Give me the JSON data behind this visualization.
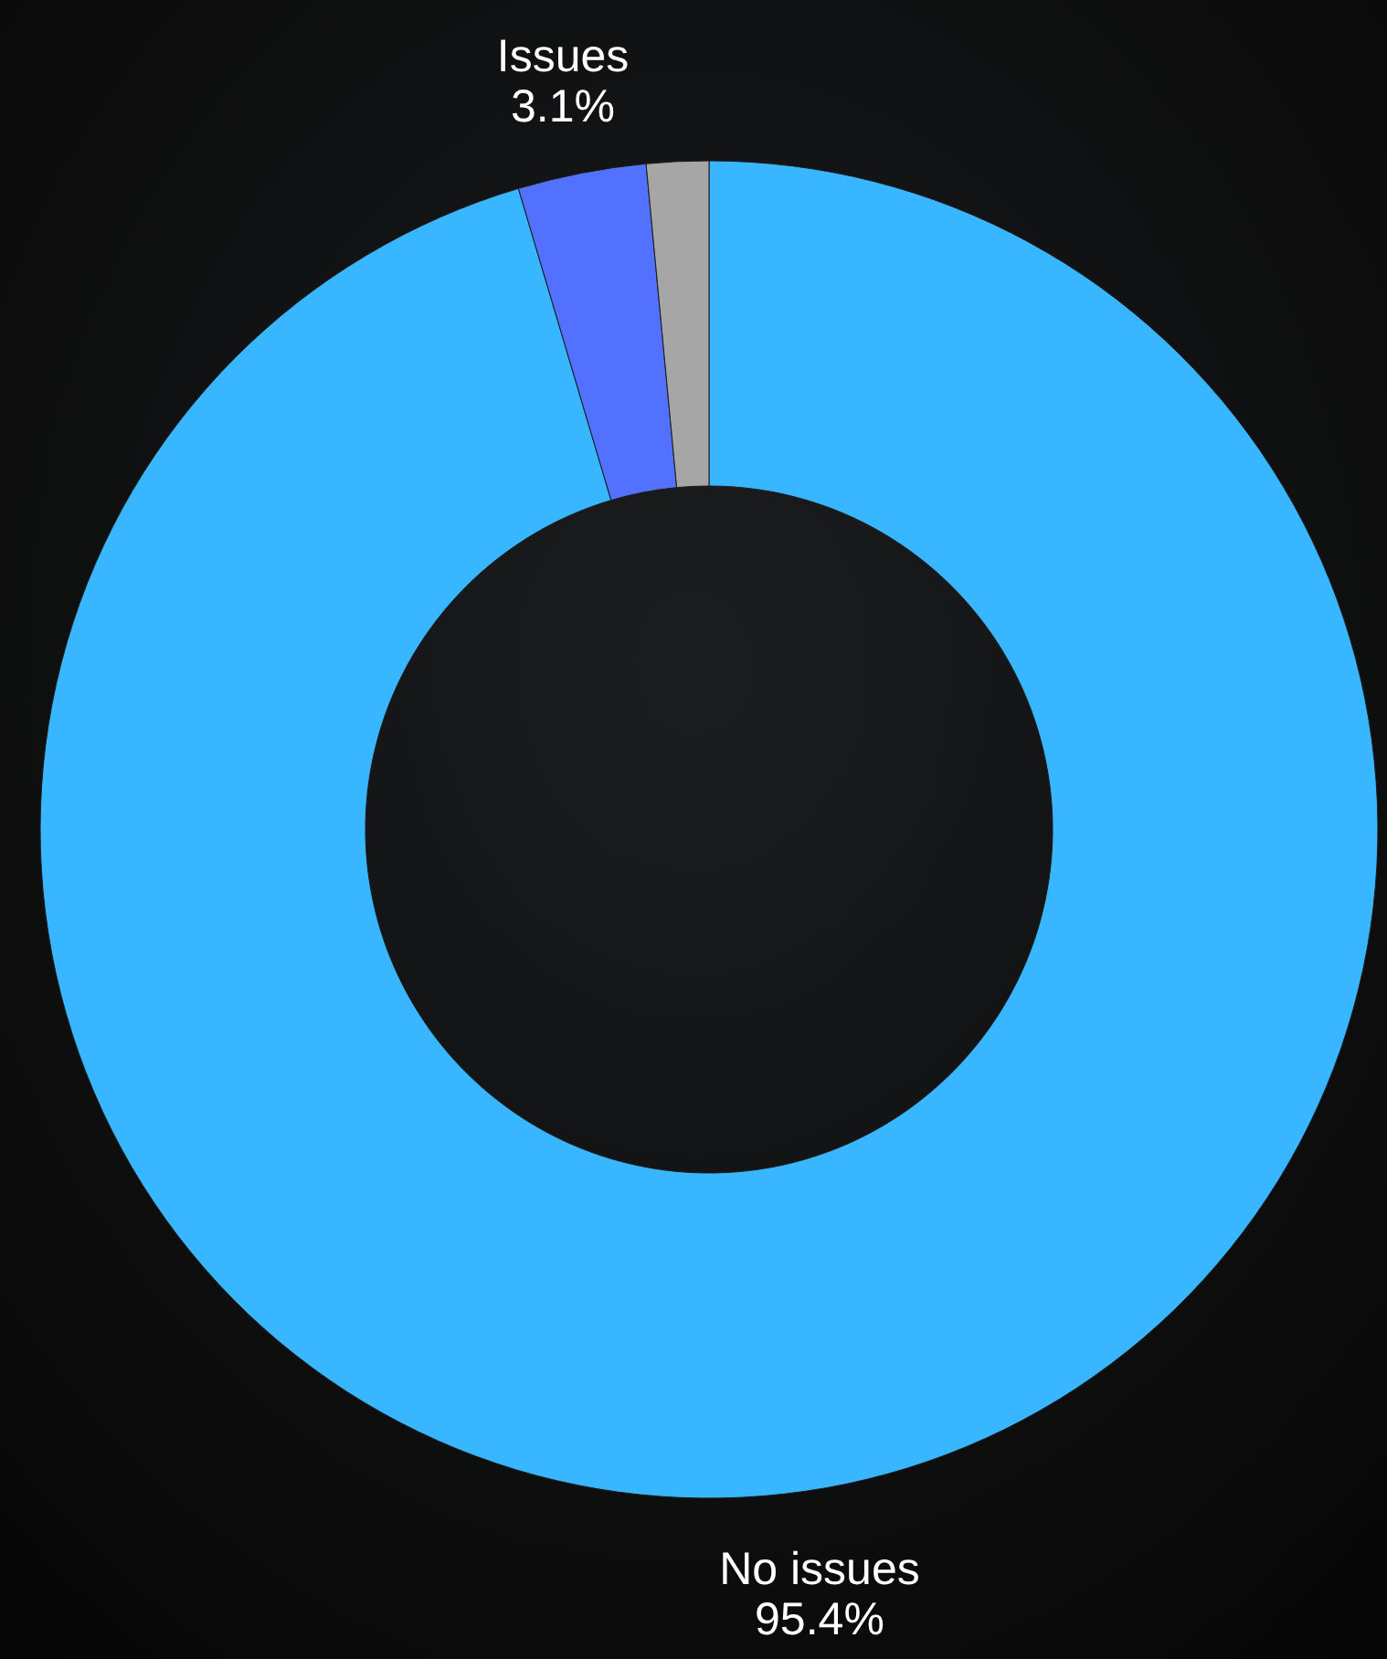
{
  "chart_data": {
    "type": "donut",
    "categories": [
      "No issues",
      "Issues",
      null
    ],
    "values": [
      95.4,
      3.1,
      1.5
    ],
    "colors": [
      "#38b6ff",
      "#5271ff",
      "#a6a6a6"
    ],
    "value_labels": [
      "95.4%",
      "3.1%",
      null
    ]
  }
}
